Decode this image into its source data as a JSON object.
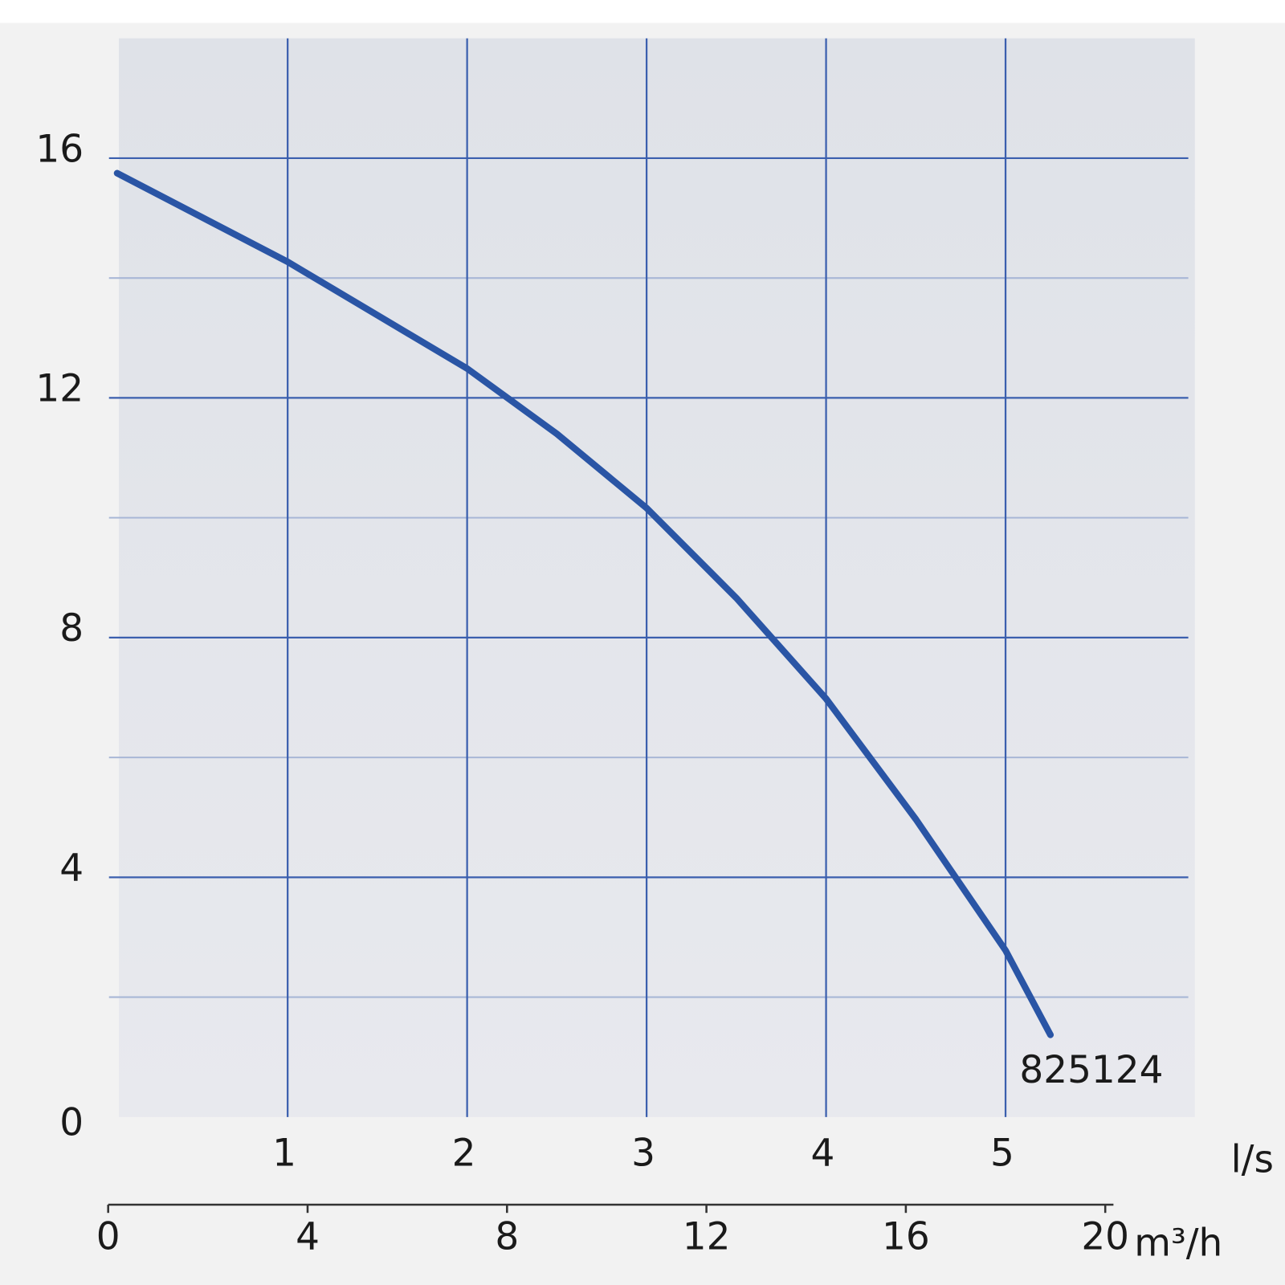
{
  "chart_data": {
    "type": "line",
    "x_unit_label": "l/s",
    "x2_unit_label": "m³/h",
    "xlim": [
      0,
      6
    ],
    "xticks": [
      1,
      2,
      3,
      4,
      5
    ],
    "x2lim": [
      0,
      21.6
    ],
    "x2ticks": [
      0,
      4,
      8,
      12,
      16,
      20
    ],
    "ylim": [
      0,
      18
    ],
    "yticks": [
      0,
      4,
      8,
      12,
      16
    ],
    "minor_yticks": [
      2,
      6,
      10,
      14
    ],
    "grid": true,
    "series": [
      {
        "name": "825124",
        "color": "#2a55a5",
        "x": [
          0.05,
          1,
          2,
          2.5,
          3,
          3.5,
          4,
          4.5,
          5,
          5.25
        ],
        "values": [
          15.75,
          14.27,
          12.49,
          11.4,
          10.16,
          8.66,
          6.98,
          4.97,
          2.78,
          1.37
        ]
      }
    ]
  }
}
